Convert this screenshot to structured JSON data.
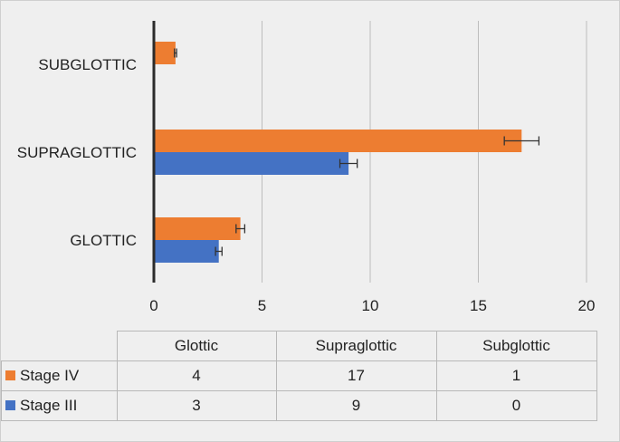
{
  "chart_data": {
    "type": "bar",
    "orientation": "horizontal",
    "categories": [
      "GLOTTIC",
      "SUPRAGLOTTIC",
      "SUBGLOTTIC"
    ],
    "series": [
      {
        "name": "Stage IV",
        "color": "#ED7D31",
        "values": [
          4,
          17,
          1
        ],
        "error": [
          0.2,
          0.8,
          0.05
        ]
      },
      {
        "name": "Stage III",
        "color": "#4472C4",
        "values": [
          3,
          9,
          0
        ],
        "error": [
          0.15,
          0.4,
          0
        ]
      }
    ],
    "xlim": [
      0,
      20
    ],
    "xticks": [
      0,
      5,
      10,
      15,
      20
    ],
    "grid": true,
    "legend": "data-table-below",
    "table": {
      "columns": [
        "Glottic",
        "Supraglottic",
        "Subglottic"
      ],
      "rows": [
        {
          "label": "Stage IV",
          "color": "#ED7D31",
          "values": [
            "4",
            "17",
            "1"
          ]
        },
        {
          "label": "Stage III",
          "color": "#4472C4",
          "values": [
            "3",
            "9",
            "0"
          ]
        }
      ]
    }
  }
}
